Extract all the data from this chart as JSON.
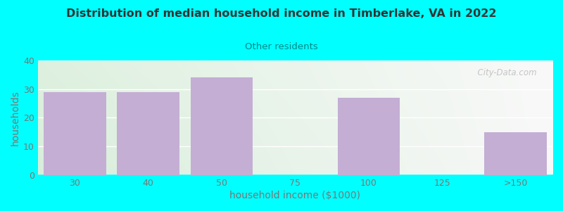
{
  "title": "Distribution of median household income in Timberlake, VA in 2022",
  "subtitle": "Other residents",
  "categories": [
    "30",
    "40",
    "50",
    "75",
    "100",
    "125",
    ">150"
  ],
  "values": [
    29,
    29,
    34,
    0,
    27,
    0,
    15
  ],
  "bar_color": "#c4aed4",
  "xlabel": "household income ($1000)",
  "ylabel": "households",
  "ylim": [
    0,
    40
  ],
  "yticks": [
    0,
    10,
    20,
    30,
    40
  ],
  "background_color": "#00ffff",
  "plot_bg_left": "#d8eeda",
  "plot_bg_right": "#f8f8f8",
  "title_color": "#333333",
  "subtitle_color": "#008888",
  "axis_color": "#777777",
  "watermark": "  City-Data.com"
}
